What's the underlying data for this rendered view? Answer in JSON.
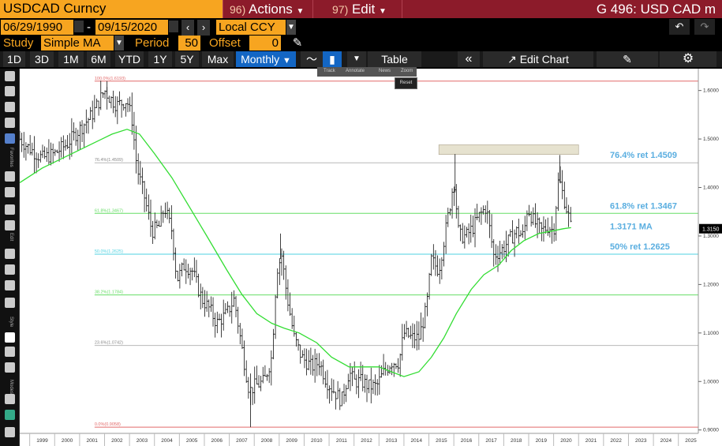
{
  "header": {
    "security": "USDCAD Curncy",
    "actions_num": "96)",
    "actions_label": "Actions",
    "edit_num": "97)",
    "edit_label": "Edit",
    "page_title": "G 496: USD CAD m"
  },
  "controls": {
    "start_date": "06/29/1990",
    "date_sep": "-",
    "end_date": "09/15/2020",
    "currency": "Local CCY",
    "study_label": "Study",
    "study_value": "Simple MA",
    "period_label": "Period",
    "period_value": "50",
    "offset_label": "Offset",
    "offset_value": "0"
  },
  "toolbar": {
    "ranges": [
      "1D",
      "3D",
      "1M",
      "6M",
      "YTD",
      "1Y",
      "5Y",
      "Max"
    ],
    "frequency": "Monthly",
    "table_label": "Table",
    "edit_chart_label": "Edit Chart"
  },
  "popup": {
    "items": [
      "Track",
      "Annotate",
      "News",
      "Zoom"
    ],
    "reset_label": "Reset"
  },
  "sidebar_labels": {
    "favorites": "Favorites",
    "edit": "Edit",
    "style": "Style",
    "modes": "Modes"
  },
  "colors": {
    "background": "#ffffff",
    "ma_line": "#33dd33",
    "fib_red": "#e26a6a",
    "fib_green": "#66dd66",
    "fib_cyan": "#4fd2e0",
    "fib_grey": "#b8b8b8",
    "callout": "#5aaee0",
    "header_red": "#8c1b2a",
    "orange": "#f7a520"
  },
  "chart_data": {
    "type": "line",
    "series_type": "ohlc-bars",
    "x_axis": {
      "ticks": [
        "1999",
        "2000",
        "2001",
        "2002",
        "2003",
        "2004",
        "2005",
        "2006",
        "2007",
        "2008",
        "2009",
        "2010",
        "2011",
        "2012",
        "2013",
        "2014",
        "2015",
        "2016",
        "2017",
        "2018",
        "2019",
        "2020",
        "2021",
        "2022",
        "2023",
        "2024",
        "2025"
      ],
      "range": [
        1998.6,
        2025.8
      ]
    },
    "y_axis": {
      "ticks": [
        "0.9000",
        "1.0000",
        "1.1000",
        "1.2000",
        "1.3000",
        "1.4000",
        "1.5000",
        "1.6000"
      ],
      "range": [
        0.893,
        1.645
      ],
      "position": "right"
    },
    "last_price_label": "1.3150",
    "last_price": 1.315,
    "price_points": [
      [
        1998.6,
        1.5
      ],
      [
        1999.0,
        1.48
      ],
      [
        1999.5,
        1.46
      ],
      [
        2000.0,
        1.47
      ],
      [
        2000.5,
        1.49
      ],
      [
        2001.0,
        1.52
      ],
      [
        2001.5,
        1.55
      ],
      [
        2002.0,
        1.6
      ],
      [
        2002.2,
        1.585
      ],
      [
        2002.5,
        1.57
      ],
      [
        2002.9,
        1.58
      ],
      [
        2003.1,
        1.54
      ],
      [
        2003.3,
        1.44
      ],
      [
        2003.6,
        1.38
      ],
      [
        2003.9,
        1.31
      ],
      [
        2004.2,
        1.32
      ],
      [
        2004.4,
        1.36
      ],
      [
        2004.7,
        1.31
      ],
      [
        2004.9,
        1.21
      ],
      [
        2005.2,
        1.24
      ],
      [
        2005.5,
        1.23
      ],
      [
        2005.9,
        1.17
      ],
      [
        2006.2,
        1.15
      ],
      [
        2006.5,
        1.12
      ],
      [
        2006.9,
        1.14
      ],
      [
        2007.2,
        1.17
      ],
      [
        2007.5,
        1.07
      ],
      [
        2007.8,
        0.98
      ],
      [
        2008.0,
        0.99
      ],
      [
        2008.4,
        1.0
      ],
      [
        2008.7,
        1.05
      ],
      [
        2008.9,
        1.23
      ],
      [
        2009.1,
        1.26
      ],
      [
        2009.3,
        1.18
      ],
      [
        2009.6,
        1.09
      ],
      [
        2009.9,
        1.05
      ],
      [
        2010.3,
        1.03
      ],
      [
        2010.6,
        1.04
      ],
      [
        2010.9,
        1.0
      ],
      [
        2011.2,
        0.98
      ],
      [
        2011.5,
        0.96
      ],
      [
        2011.8,
        1.02
      ],
      [
        2012.0,
        1.0
      ],
      [
        2012.3,
        1.0
      ],
      [
        2012.6,
        0.99
      ],
      [
        2012.9,
        0.99
      ],
      [
        2013.2,
        1.02
      ],
      [
        2013.5,
        1.04
      ],
      [
        2013.8,
        1.04
      ],
      [
        2014.0,
        1.1
      ],
      [
        2014.3,
        1.09
      ],
      [
        2014.6,
        1.09
      ],
      [
        2014.9,
        1.15
      ],
      [
        2015.1,
        1.25
      ],
      [
        2015.4,
        1.23
      ],
      [
        2015.7,
        1.32
      ],
      [
        2015.9,
        1.38
      ],
      [
        2016.0,
        1.42
      ],
      [
        2016.2,
        1.3
      ],
      [
        2016.5,
        1.3
      ],
      [
        2016.8,
        1.32
      ],
      [
        2017.0,
        1.34
      ],
      [
        2017.3,
        1.36
      ],
      [
        2017.6,
        1.26
      ],
      [
        2017.9,
        1.27
      ],
      [
        2018.2,
        1.29
      ],
      [
        2018.5,
        1.31
      ],
      [
        2018.8,
        1.3
      ],
      [
        2018.95,
        1.36
      ],
      [
        2019.2,
        1.33
      ],
      [
        2019.5,
        1.31
      ],
      [
        2019.8,
        1.32
      ],
      [
        2020.0,
        1.31
      ],
      [
        2020.2,
        1.42
      ],
      [
        2020.4,
        1.38
      ],
      [
        2020.6,
        1.34
      ],
      [
        2020.7,
        1.315
      ]
    ],
    "moving_average": {
      "name": "1.3171 MA",
      "period": 50,
      "points": [
        [
          1998.6,
          1.41
        ],
        [
          1999.5,
          1.44
        ],
        [
          2000.5,
          1.465
        ],
        [
          2001.5,
          1.49
        ],
        [
          2002.3,
          1.51
        ],
        [
          2002.9,
          1.52
        ],
        [
          2003.4,
          1.51
        ],
        [
          2004.0,
          1.47
        ],
        [
          2004.7,
          1.42
        ],
        [
          2005.4,
          1.36
        ],
        [
          2006.1,
          1.3
        ],
        [
          2006.9,
          1.23
        ],
        [
          2007.5,
          1.18
        ],
        [
          2008.1,
          1.14
        ],
        [
          2008.7,
          1.12
        ],
        [
          2009.2,
          1.11
        ],
        [
          2009.8,
          1.1
        ],
        [
          2010.5,
          1.08
        ],
        [
          2011.1,
          1.05
        ],
        [
          2011.8,
          1.03
        ],
        [
          2012.4,
          1.03
        ],
        [
          2013.0,
          1.03
        ],
        [
          2013.5,
          1.02
        ],
        [
          2014.0,
          1.01
        ],
        [
          2014.6,
          1.02
        ],
        [
          2015.1,
          1.05
        ],
        [
          2015.6,
          1.09
        ],
        [
          2016.1,
          1.14
        ],
        [
          2016.7,
          1.19
        ],
        [
          2017.2,
          1.22
        ],
        [
          2017.8,
          1.24
        ],
        [
          2018.3,
          1.27
        ],
        [
          2018.8,
          1.29
        ],
        [
          2019.4,
          1.305
        ],
        [
          2019.9,
          1.31
        ],
        [
          2020.4,
          1.315
        ],
        [
          2020.7,
          1.3171
        ]
      ]
    },
    "fib_levels": [
      {
        "label": "100.0%(1.6193)",
        "value": 1.6193,
        "color": "#e26a6a"
      },
      {
        "label": "76.4%(1.4509)",
        "value": 1.4509,
        "color": "#b8b8b8"
      },
      {
        "label": "61.8%(1.3467)",
        "value": 1.3467,
        "color": "#66dd66"
      },
      {
        "label": "50.0%(1.2625)",
        "value": 1.2625,
        "color": "#4fd2e0"
      },
      {
        "label": "38.2%(1.1784)",
        "value": 1.1784,
        "color": "#66dd66"
      },
      {
        "label": "23.6%(1.0742)",
        "value": 1.0742,
        "color": "#b8b8b8"
      },
      {
        "label": "0.0%(0.9058)",
        "value": 0.9058,
        "color": "#e26a6a"
      }
    ],
    "resistance_box": {
      "x0": 2015.4,
      "x1": 2021.0,
      "y0": 1.468,
      "y1": 1.488
    },
    "annotations": [
      {
        "text": "76.4% ret 1.4509",
        "value": 1.4509
      },
      {
        "text": "61.8% ret 1.3467",
        "value": 1.3467
      },
      {
        "text": "1.3171 MA",
        "value": 1.3171
      },
      {
        "text": "50% ret 1.2625",
        "value": 1.2625
      }
    ]
  }
}
